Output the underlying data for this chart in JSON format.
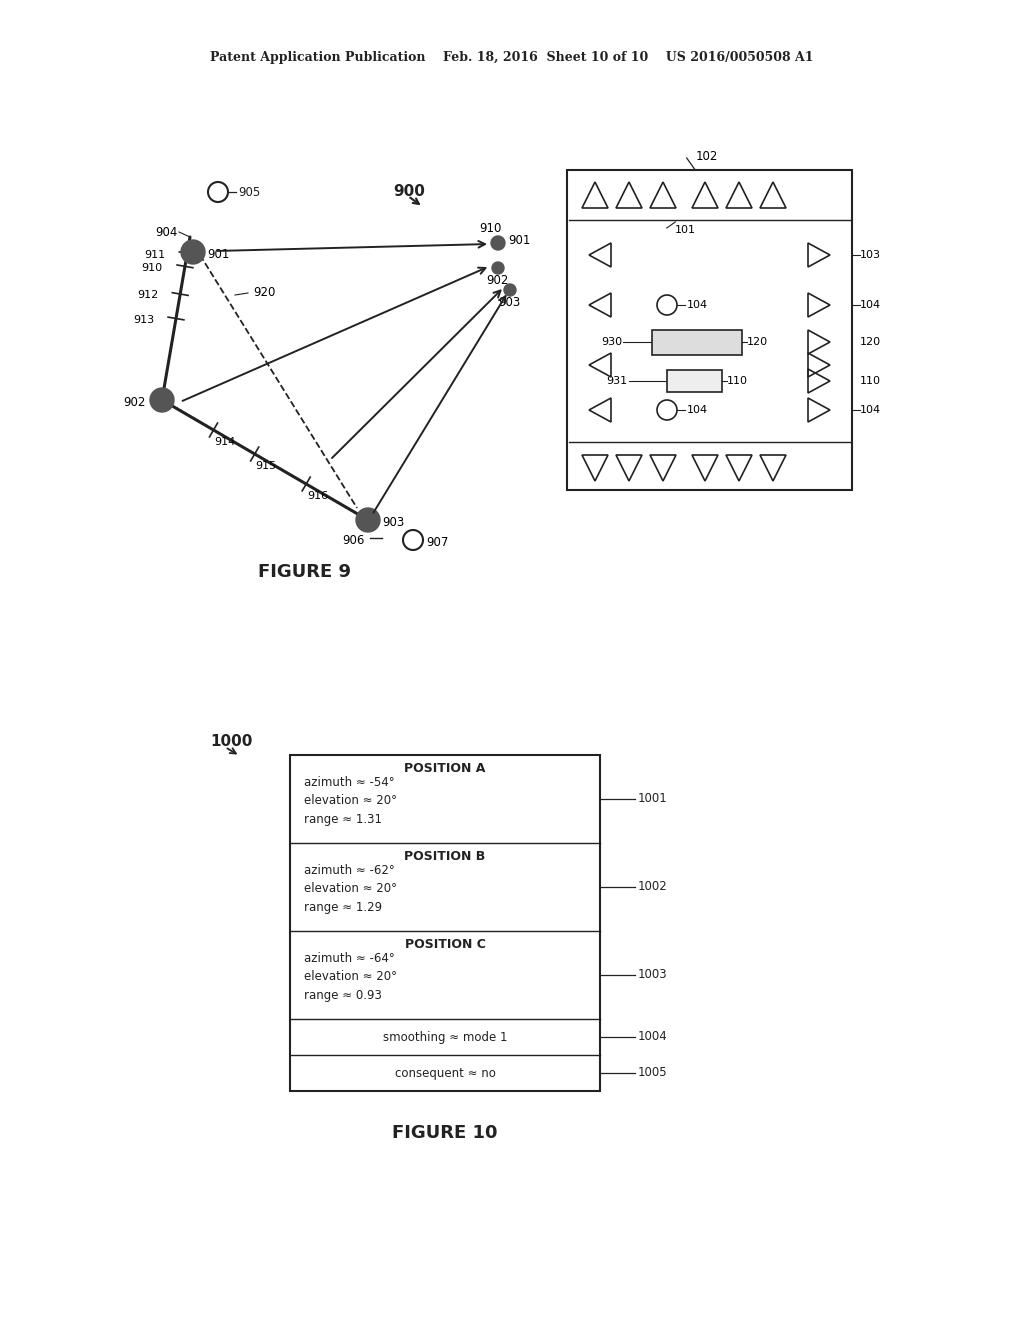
{
  "header_text": "Patent Application Publication    Feb. 18, 2016  Sheet 10 of 10    US 2016/0050508 A1",
  "fig9_label": "FIGURE 9",
  "fig10_label": "FIGURE 10",
  "fig9_ref": "900",
  "fig10_ref": "1000",
  "bg_color": "#ffffff",
  "line_color": "#222222",
  "gray_fill": "#555555",
  "positions": {
    "pos_a_title": "POSITION A",
    "pos_a_lines": [
      "azimuth ≈ -54°",
      "elevation ≈ 20°",
      "range ≈ 1.31"
    ],
    "pos_b_title": "POSITION B",
    "pos_b_lines": [
      "azimuth ≈ -62°",
      "elevation ≈ 20°",
      "range ≈ 1.29"
    ],
    "pos_c_title": "POSITION C",
    "pos_c_lines": [
      "azimuth ≈ -64°",
      "elevation ≈ 20°",
      "range ≈ 0.93"
    ],
    "smoothing": "smoothing ≈ mode 1",
    "consequent": "consequent ≈ no"
  },
  "labels_1001": "1001",
  "labels_1002": "1002",
  "labels_1003": "1003",
  "labels_1004": "1004",
  "labels_1005": "1005"
}
